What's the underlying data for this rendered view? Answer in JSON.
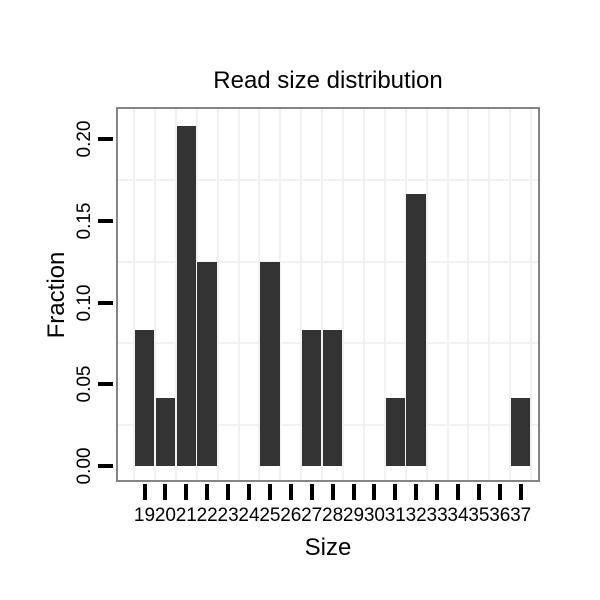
{
  "chart_data": {
    "type": "bar",
    "title": "Read size distribution",
    "xlabel": "Size",
    "ylabel": "Fraction",
    "categories": [
      "19",
      "20",
      "21",
      "22",
      "23",
      "24",
      "25",
      "26",
      "27",
      "28",
      "29",
      "30",
      "31",
      "32",
      "33",
      "34",
      "35",
      "36",
      "37"
    ],
    "values": [
      0.0833,
      0.0417,
      0.2083,
      0.125,
      0,
      0,
      0.125,
      0,
      0.0833,
      0.0833,
      0,
      0,
      0.0417,
      0.1667,
      0,
      0,
      0,
      0,
      0.0417
    ],
    "ylim": [
      0,
      0.22
    ],
    "yticks": [
      {
        "value": 0.0,
        "label": "0.00"
      },
      {
        "value": 0.05,
        "label": "0.05"
      },
      {
        "value": 0.1,
        "label": "0.10"
      },
      {
        "value": 0.15,
        "label": "0.15"
      },
      {
        "value": 0.2,
        "label": "0.20"
      }
    ],
    "minor_gridlines": [
      0.025,
      0.075,
      0.125,
      0.175
    ],
    "grid": "light horizontal minor lines + vertical category separators",
    "legend_position": "none",
    "colors": {
      "bar": "#333333",
      "panel_border": "#848484",
      "gridline": "#f1f1f1",
      "tick": "#000000",
      "text": "#000000",
      "background": "#ffffff"
    }
  }
}
